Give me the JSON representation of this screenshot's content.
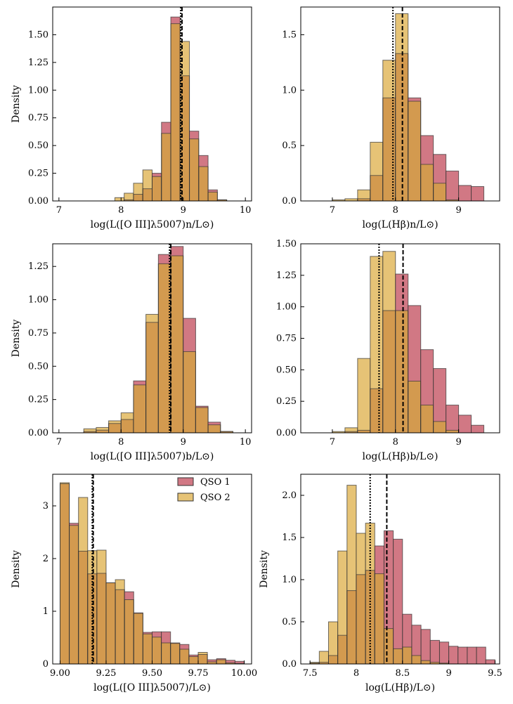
{
  "colors": {
    "qso1": "#c9606e",
    "qso2": "#e2b95e",
    "overlap": "#d39a4f",
    "edge": "#111111"
  },
  "legend": {
    "placement": "upper-right",
    "items": [
      {
        "label": "QSO 1",
        "color": "#c9606e"
      },
      {
        "label": "QSO 2",
        "color": "#e2b95e"
      }
    ]
  },
  "chart_data": [
    {
      "type": "bar",
      "name": "OIII narrow",
      "xlabel": "log(L([O III]λ5007)n/L⊙)",
      "ylabel": "Density",
      "xlim": [
        6.9,
        10.1
      ],
      "ylim": [
        0,
        1.75
      ],
      "xticks": [
        7,
        8,
        9,
        10
      ],
      "yticks": [
        0.0,
        0.25,
        0.5,
        0.75,
        1.0,
        1.25,
        1.5
      ],
      "ytick_labels": [
        "0.00",
        "0.25",
        "0.50",
        "0.75",
        "1.00",
        "1.25",
        "1.50"
      ],
      "bin_edges": [
        7.0,
        7.15,
        7.3,
        7.45,
        7.6,
        7.75,
        7.9,
        8.05,
        8.2,
        8.35,
        8.5,
        8.65,
        8.8,
        8.95,
        9.1,
        9.25,
        9.4,
        9.55,
        9.7,
        9.85,
        10.0
      ],
      "series": [
        {
          "name": "QSO 1",
          "values": [
            0,
            0,
            0,
            0,
            0,
            0,
            0.0,
            0.01,
            0.06,
            0.11,
            0.25,
            0.71,
            1.66,
            1.13,
            0.63,
            0.41,
            0.1,
            0.01,
            0,
            0
          ]
        },
        {
          "name": "QSO 2",
          "values": [
            0,
            0,
            0,
            0,
            0,
            0,
            0.03,
            0.07,
            0.16,
            0.28,
            0.22,
            0.61,
            1.6,
            1.44,
            0.56,
            0.31,
            0.08,
            0.01,
            0,
            0
          ]
        }
      ],
      "vlines": {
        "dashed": 8.98,
        "dotted": 8.96
      }
    },
    {
      "type": "bar",
      "name": "Hbeta narrow",
      "xlabel": "log(L(Hβ)n/L⊙)",
      "ylabel": "",
      "xlim": [
        6.5,
        9.65
      ],
      "ylim": [
        0,
        1.75
      ],
      "xticks": [
        7,
        8,
        9
      ],
      "yticks": [
        0.0,
        0.5,
        1.0,
        1.5
      ],
      "ytick_labels": [
        "0.0",
        "0.5",
        "1.0",
        "1.5"
      ],
      "bin_edges": [
        6.6,
        6.8,
        7.0,
        7.2,
        7.4,
        7.6,
        7.8,
        8.0,
        8.2,
        8.4,
        8.6,
        8.8,
        9.0,
        9.2,
        9.4
      ],
      "series": [
        {
          "name": "QSO 1",
          "values": [
            0,
            0,
            0,
            0,
            0.02,
            0.23,
            0.93,
            1.33,
            0.93,
            0.59,
            0.42,
            0.27,
            0.14,
            0.13
          ]
        },
        {
          "name": "QSO 2",
          "values": [
            0,
            0,
            0.01,
            0.02,
            0.1,
            0.53,
            1.27,
            1.69,
            0.9,
            0.33,
            0.16,
            0.01,
            0,
            0
          ]
        }
      ],
      "vlines": {
        "dashed": 8.11,
        "dotted": 7.96
      }
    },
    {
      "type": "bar",
      "name": "OIII broad",
      "xlabel": "log(L([O III]λ5007)b/L⊙)",
      "ylabel": "Density",
      "xlim": [
        6.9,
        10.1
      ],
      "ylim": [
        0,
        1.42
      ],
      "xticks": [
        7,
        8,
        9,
        10
      ],
      "yticks": [
        0.0,
        0.25,
        0.5,
        0.75,
        1.0,
        1.25
      ],
      "ytick_labels": [
        "0.00",
        "0.25",
        "0.50",
        "0.75",
        "1.00",
        "1.25"
      ],
      "bin_edges": [
        7.0,
        7.2,
        7.4,
        7.6,
        7.8,
        8.0,
        8.2,
        8.4,
        8.6,
        8.8,
        9.0,
        9.2,
        9.4,
        9.6,
        9.8,
        10.0
      ],
      "series": [
        {
          "name": "QSO 1",
          "values": [
            0,
            0,
            0.01,
            0.02,
            0.07,
            0.1,
            0.39,
            0.83,
            1.34,
            1.4,
            0.86,
            0.2,
            0.08,
            0.01,
            0
          ]
        },
        {
          "name": "QSO 2",
          "values": [
            0,
            0,
            0.03,
            0.04,
            0.09,
            0.15,
            0.36,
            0.89,
            1.27,
            1.33,
            0.61,
            0.19,
            0.06,
            0.01,
            0
          ]
        }
      ],
      "vlines": {
        "dashed": 8.8,
        "dotted": 8.78
      }
    },
    {
      "type": "bar",
      "name": "Hbeta broad",
      "xlabel": "log(L(Hβ)b/L⊙)",
      "ylabel": "",
      "xlim": [
        6.5,
        9.65
      ],
      "ylim": [
        0,
        1.5
      ],
      "xticks": [
        7,
        8,
        9
      ],
      "yticks": [
        0.0,
        0.25,
        0.5,
        0.75,
        1.0,
        1.25,
        1.5
      ],
      "ytick_labels": [
        "0.00",
        "0.25",
        "0.50",
        "0.75",
        "1.00",
        "1.25",
        "1.50"
      ],
      "bin_edges": [
        6.6,
        6.8,
        7.0,
        7.2,
        7.4,
        7.6,
        7.8,
        8.0,
        8.2,
        8.4,
        8.6,
        8.8,
        9.0,
        9.2,
        9.4
      ],
      "series": [
        {
          "name": "QSO 1",
          "values": [
            0,
            0,
            0,
            0.01,
            0.02,
            0.35,
            0.97,
            1.26,
            1.01,
            0.66,
            0.51,
            0.22,
            0.14,
            0.06
          ]
        },
        {
          "name": "QSO 2",
          "values": [
            0,
            0,
            0.01,
            0.04,
            0.59,
            1.4,
            1.44,
            0.97,
            0.41,
            0.22,
            0.09,
            0.02,
            0,
            0
          ]
        }
      ],
      "vlines": {
        "dashed": 8.12,
        "dotted": 7.74
      }
    },
    {
      "type": "bar",
      "name": "OIII total",
      "xlabel": "log(L([O III]λ5007)/L⊙)",
      "ylabel": "Density",
      "xlim": [
        8.96,
        10.04
      ],
      "ylim": [
        0,
        3.6
      ],
      "xticks": [
        9.0,
        9.25,
        9.5,
        9.75,
        10.0
      ],
      "yticks": [
        0,
        1,
        2,
        3
      ],
      "xtick_labels": [
        "9.00",
        "9.25",
        "9.50",
        "9.75",
        "10.00"
      ],
      "ytick_labels": [
        "0",
        "1",
        "2",
        "3"
      ],
      "bin_edges": [
        9.0,
        9.05,
        9.1,
        9.15,
        9.2,
        9.25,
        9.3,
        9.35,
        9.4,
        9.45,
        9.5,
        9.55,
        9.6,
        9.65,
        9.7,
        9.75,
        9.8,
        9.85,
        9.9,
        9.95,
        10.0
      ],
      "series": [
        {
          "name": "QSO 1",
          "values": [
            3.42,
            2.67,
            2.14,
            1.71,
            1.72,
            1.54,
            1.41,
            1.37,
            0.97,
            0.6,
            0.61,
            0.61,
            0.4,
            0.37,
            0.17,
            0.18,
            0.08,
            0.1,
            0.07,
            0.05
          ]
        },
        {
          "name": "QSO 2",
          "values": [
            3.44,
            2.63,
            3.16,
            2.15,
            2.16,
            1.54,
            1.6,
            1.22,
            0.96,
            0.57,
            0.51,
            0.4,
            0.39,
            0.28,
            0.14,
            0.22,
            0.04,
            0.08,
            0.02,
            0.01
          ]
        }
      ],
      "vlines": {
        "dashed": 9.18,
        "dotted": 9.175
      }
    },
    {
      "type": "bar",
      "name": "Hbeta total",
      "xlabel": "log(L(Hβ)/L⊙)",
      "ylabel": "Density",
      "xlim": [
        7.4,
        9.55
      ],
      "ylim": [
        0,
        2.25
      ],
      "xticks": [
        7.5,
        8.0,
        8.5,
        9.0,
        9.5
      ],
      "yticks": [
        0.0,
        0.5,
        1.0,
        1.5,
        2.0
      ],
      "ytick_labels": [
        "0.0",
        "0.5",
        "1.0",
        "1.5",
        "2.0"
      ],
      "bin_edges": [
        7.5,
        7.6,
        7.7,
        7.8,
        7.9,
        8.0,
        8.1,
        8.2,
        8.3,
        8.4,
        8.5,
        8.6,
        8.7,
        8.8,
        8.9,
        9.0,
        9.1,
        9.2,
        9.3,
        9.4,
        9.5
      ],
      "series": [
        {
          "name": "QSO 1",
          "values": [
            0.01,
            0.02,
            0.1,
            0.34,
            0.87,
            1.06,
            1.11,
            1.4,
            1.58,
            1.48,
            0.59,
            0.46,
            0.41,
            0.28,
            0.26,
            0.21,
            0.2,
            0.2,
            0.2,
            0.05
          ]
        },
        {
          "name": "QSO 2",
          "values": [
            0.02,
            0.15,
            0.5,
            1.34,
            2.12,
            1.55,
            1.67,
            1.07,
            0.42,
            0.18,
            0.2,
            0.1,
            0.04,
            0.02,
            0.01,
            0,
            0,
            0,
            0,
            0
          ]
        }
      ],
      "vlines": {
        "dashed": 8.33,
        "dotted": 8.15
      }
    }
  ]
}
